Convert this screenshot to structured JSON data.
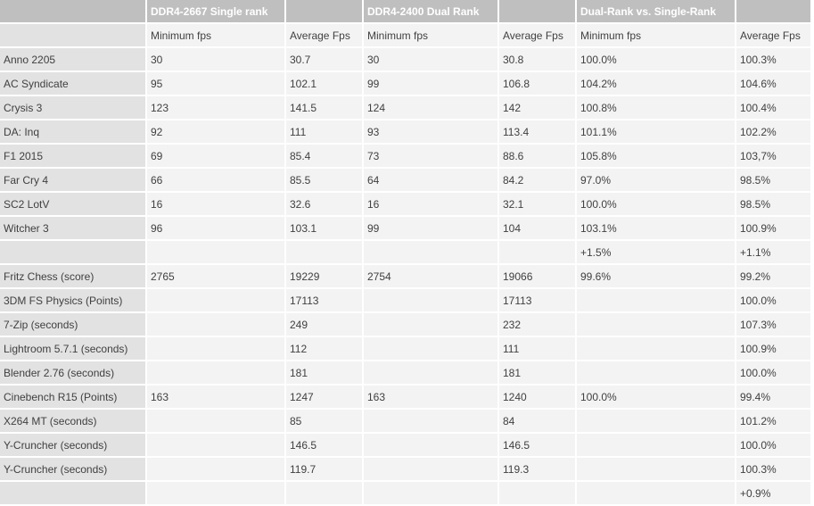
{
  "header": {
    "group1": "DDR4-2667 Single rank",
    "group2": "DDR4-2400 Dual Rank",
    "group3": "Dual-Rank vs. Single-Rank"
  },
  "subheader": [
    "Minimum fps",
    "Average Fps",
    "Minimum fps",
    "Average Fps",
    "Minimum fps",
    "Average Fps"
  ],
  "rows": [
    {
      "label": "Anno 2205",
      "cells": [
        "30",
        "30.7",
        "30",
        "30.8",
        "100.0%",
        "100.3%"
      ]
    },
    {
      "label": "AC Syndicate",
      "cells": [
        "95",
        "102.1",
        "99",
        "106.8",
        "104.2%",
        "104.6%"
      ]
    },
    {
      "label": "Crysis 3",
      "cells": [
        "123",
        "141.5",
        "124",
        "142",
        "100.8%",
        "100.4%"
      ]
    },
    {
      "label": "DA: Inq",
      "cells": [
        "92",
        "111",
        "93",
        "113.4",
        "101.1%",
        "102.2%"
      ]
    },
    {
      "label": "F1 2015",
      "cells": [
        "69",
        "85.4",
        "73",
        "88.6",
        "105.8%",
        "103,7%"
      ]
    },
    {
      "label": "Far Cry 4",
      "cells": [
        "66",
        "85.5",
        "64",
        "84.2",
        "97.0%",
        "98.5%"
      ]
    },
    {
      "label": "SC2 LotV",
      "cells": [
        "16",
        "32.6",
        "16",
        "32.1",
        "100.0%",
        "98.5%"
      ]
    },
    {
      "label": "Witcher 3",
      "cells": [
        "96",
        "103.1",
        "99",
        "104",
        "103.1%",
        "100.9%"
      ]
    },
    {
      "label": "",
      "cells": [
        "",
        "",
        "",
        "",
        "+1.5%",
        "+1.1%"
      ]
    },
    {
      "label": "Fritz Chess (score)",
      "cells": [
        "2765",
        "19229",
        "2754",
        "19066",
        "99.6%",
        "99.2%"
      ]
    },
    {
      "label": "3DM FS Physics (Points)",
      "cells": [
        "",
        "17113",
        "",
        "17113",
        "",
        "100.0%"
      ]
    },
    {
      "label": "7-Zip (seconds)",
      "cells": [
        "",
        "249",
        "",
        "232",
        "",
        "107.3%"
      ]
    },
    {
      "label": "Lightroom 5.7.1 (seconds)",
      "cells": [
        "",
        "112",
        "",
        "111",
        "",
        "100.9%"
      ]
    },
    {
      "label": "Blender 2.76 (seconds)",
      "cells": [
        "",
        "181",
        "",
        "181",
        "",
        "100.0%"
      ]
    },
    {
      "label": "Cinebench R15 (Points)",
      "cells": [
        "163",
        "1247",
        "163",
        "1240",
        "100.0%",
        "99.4%"
      ]
    },
    {
      "label": "X264 MT (seconds)",
      "cells": [
        "",
        "85",
        "",
        "84",
        "",
        "101.2%"
      ]
    },
    {
      "label": "Y-Cruncher (seconds)",
      "cells": [
        "",
        "146.5",
        "",
        "146.5",
        "",
        "100.0%"
      ]
    },
    {
      "label": "Y-Cruncher (seconds)",
      "cells": [
        "",
        "119.7",
        "",
        "119.3",
        "",
        "100.3%"
      ]
    },
    {
      "label": "",
      "cells": [
        "",
        "",
        "",
        "",
        "",
        "+0.9%"
      ]
    }
  ]
}
